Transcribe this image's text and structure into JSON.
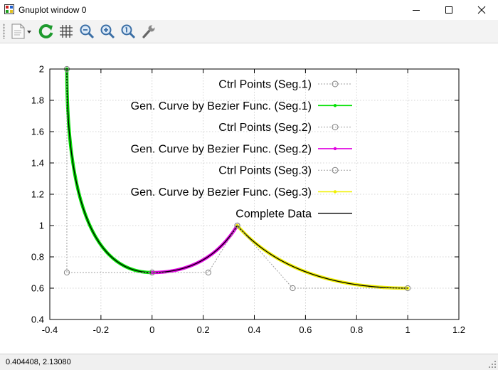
{
  "window": {
    "title": "Gnuplot window 0",
    "icons": [
      "gnuplot-app-icon",
      "minimize-icon",
      "maximize-icon",
      "close-icon"
    ]
  },
  "toolbar": {
    "buttons": [
      {
        "name": "print-options-icon"
      },
      {
        "name": "replot-icon"
      },
      {
        "name": "grid-icon"
      },
      {
        "name": "zoom-previous-icon"
      },
      {
        "name": "zoom-next-icon"
      },
      {
        "name": "autoscale-icon"
      },
      {
        "name": "options-wrench-icon"
      }
    ]
  },
  "status": {
    "coordinates": "0.404408,  2.13080"
  },
  "colors": {
    "ctrl_points": "#a0a0a0",
    "seg1": "#00e000",
    "seg2": "#e000e0",
    "seg3": "#f0f000",
    "complete": "#000000"
  },
  "chart_data": {
    "type": "line",
    "title": "",
    "xlabel": "",
    "ylabel": "",
    "xlim": [
      -0.4,
      1.2
    ],
    "ylim": [
      0.4,
      2.0
    ],
    "xticks": [
      "-0.4",
      "-0.2",
      "0",
      "0.2",
      "0.4",
      "0.6",
      "0.8",
      "1",
      "1.2"
    ],
    "yticks": [
      "0.4",
      "0.6",
      "0.8",
      "1",
      "1.2",
      "1.4",
      "1.6",
      "1.8",
      "2"
    ],
    "grid": true,
    "legend_position": "top-right",
    "series": [
      {
        "name": "Ctrl Points (Seg.1)",
        "style": "dashed-circles",
        "color": "#a0a0a0",
        "points": [
          [
            -0.3333,
            2.0
          ],
          [
            -0.3333,
            0.7
          ],
          [
            0.0,
            0.7
          ]
        ]
      },
      {
        "name": "Gen. Curve by Bezier Func. (Seg.1)",
        "style": "line-dots",
        "color": "#00e000",
        "bezier": [
          [
            -0.3333,
            2.0
          ],
          [
            -0.3333,
            0.7
          ],
          [
            0.0,
            0.7
          ]
        ]
      },
      {
        "name": "Ctrl Points (Seg.2)",
        "style": "dashed-circles",
        "color": "#a0a0a0",
        "points": [
          [
            0.0,
            0.7
          ],
          [
            0.22,
            0.7
          ],
          [
            0.3333,
            1.0
          ]
        ]
      },
      {
        "name": "Gen. Curve by Bezier Func. (Seg.2)",
        "style": "line-dots",
        "color": "#e000e0",
        "bezier": [
          [
            0.0,
            0.7
          ],
          [
            0.22,
            0.7
          ],
          [
            0.3333,
            1.0
          ]
        ]
      },
      {
        "name": "Ctrl Points (Seg.3)",
        "style": "dashed-circles",
        "color": "#a0a0a0",
        "points": [
          [
            0.3333,
            1.0
          ],
          [
            0.55,
            0.6
          ],
          [
            1.0,
            0.6
          ]
        ]
      },
      {
        "name": "Gen. Curve by Bezier Func. (Seg.3)",
        "style": "line-dots",
        "color": "#f0f000",
        "bezier": [
          [
            0.3333,
            1.0
          ],
          [
            0.55,
            0.6
          ],
          [
            1.0,
            0.6
          ]
        ]
      },
      {
        "name": "Complete Data",
        "style": "solid",
        "color": "#000000",
        "composite": true
      }
    ]
  }
}
